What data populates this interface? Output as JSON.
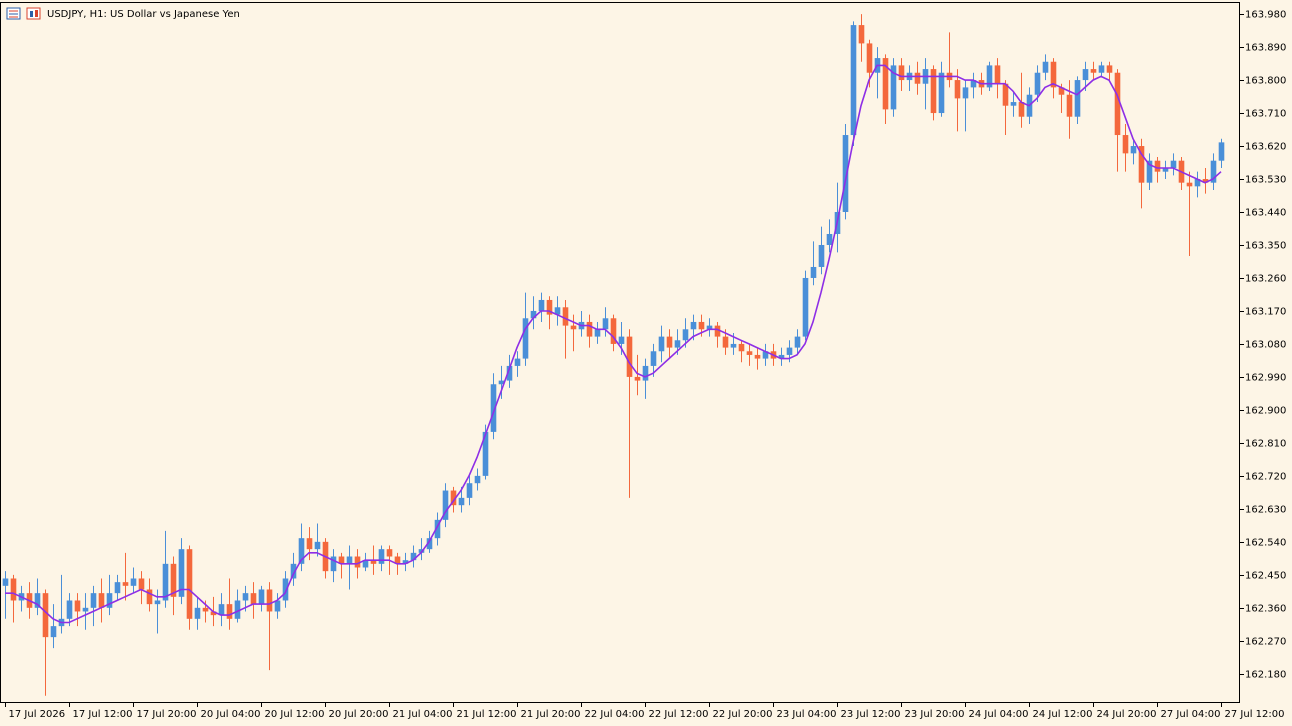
{
  "chart_data": {
    "type": "candlestick",
    "title": "USDJPY, H1:  US Dollar vs Japanese Yen",
    "up_color": "#4a8fd8",
    "down_color": "#f4683c",
    "ylim": [
      162.103,
      164.013
    ],
    "xlim": [
      -0.625,
      154.375
    ],
    "yticks": [
      {
        "value": 163.98,
        "label": "163.980"
      },
      {
        "value": 163.89,
        "label": "163.890"
      },
      {
        "value": 163.8,
        "label": "163.800"
      },
      {
        "value": 163.71,
        "label": "163.710"
      },
      {
        "value": 163.62,
        "label": "163.620"
      },
      {
        "value": 163.53,
        "label": "163.530"
      },
      {
        "value": 163.44,
        "label": "163.440"
      },
      {
        "value": 163.35,
        "label": "163.350"
      },
      {
        "value": 163.26,
        "label": "163.260"
      },
      {
        "value": 163.17,
        "label": "163.170"
      },
      {
        "value": 163.08,
        "label": "163.080"
      },
      {
        "value": 162.99,
        "label": "162.990"
      },
      {
        "value": 162.9,
        "label": "162.900"
      },
      {
        "value": 162.81,
        "label": "162.810"
      },
      {
        "value": 162.72,
        "label": "162.720"
      },
      {
        "value": 162.63,
        "label": "162.630"
      },
      {
        "value": 162.54,
        "label": "162.540"
      },
      {
        "value": 162.45,
        "label": "162.450"
      },
      {
        "value": 162.36,
        "label": "162.360"
      },
      {
        "value": 162.27,
        "label": "162.270"
      },
      {
        "value": 162.18,
        "label": "162.180"
      }
    ],
    "xticks": [
      {
        "value": 0,
        "label": "17 Jul 2026"
      },
      {
        "value": 8,
        "label": "17 Jul 12:00"
      },
      {
        "value": 16,
        "label": "17 Jul 20:00"
      },
      {
        "value": 24,
        "label": "20 Jul 04:00"
      },
      {
        "value": 32,
        "label": "20 Jul 12:00"
      },
      {
        "value": 40,
        "label": "20 Jul 20:00"
      },
      {
        "value": 48,
        "label": "21 Jul 04:00"
      },
      {
        "value": 56,
        "label": "21 Jul 12:00"
      },
      {
        "value": 64,
        "label": "21 Jul 20:00"
      },
      {
        "value": 72,
        "label": "22 Jul 04:00"
      },
      {
        "value": 80,
        "label": "22 Jul 12:00"
      },
      {
        "value": 88,
        "label": "22 Jul 20:00"
      },
      {
        "value": 96,
        "label": "23 Jul 04:00"
      },
      {
        "value": 104,
        "label": "23 Jul 12:00"
      },
      {
        "value": 112,
        "label": "23 Jul 20:00"
      },
      {
        "value": 120,
        "label": "24 Jul 04:00"
      },
      {
        "value": 128,
        "label": "24 Jul 12:00"
      },
      {
        "value": 136,
        "label": "24 Jul 20:00"
      },
      {
        "value": 144,
        "label": "27 Jul 04:00"
      },
      {
        "value": 152,
        "label": "27 Jul 12:00"
      }
    ],
    "candles": [
      [
        162.42,
        162.46,
        162.33,
        162.44
      ],
      [
        162.44,
        162.45,
        162.32,
        162.38
      ],
      [
        162.38,
        162.42,
        162.35,
        162.4
      ],
      [
        162.4,
        162.43,
        162.33,
        162.36
      ],
      [
        162.36,
        162.44,
        162.34,
        162.4
      ],
      [
        162.4,
        162.41,
        162.12,
        162.28
      ],
      [
        162.28,
        162.37,
        162.25,
        162.31
      ],
      [
        162.31,
        162.45,
        162.29,
        162.33
      ],
      [
        162.33,
        162.4,
        162.31,
        162.38
      ],
      [
        162.38,
        162.4,
        162.31,
        162.35
      ],
      [
        162.35,
        162.4,
        162.3,
        162.36
      ],
      [
        162.36,
        162.42,
        162.31,
        162.4
      ],
      [
        162.4,
        162.44,
        162.32,
        162.36
      ],
      [
        162.36,
        162.45,
        162.34,
        162.4
      ],
      [
        162.4,
        162.45,
        162.38,
        162.43
      ],
      [
        162.43,
        162.51,
        162.38,
        162.42
      ],
      [
        162.42,
        162.47,
        162.4,
        162.44
      ],
      [
        162.44,
        162.46,
        162.37,
        162.41
      ],
      [
        162.41,
        162.44,
        162.35,
        162.37
      ],
      [
        162.37,
        162.41,
        162.29,
        162.38
      ],
      [
        162.38,
        162.57,
        162.36,
        162.48
      ],
      [
        162.48,
        162.5,
        162.34,
        162.39
      ],
      [
        162.39,
        162.55,
        162.37,
        162.52
      ],
      [
        162.52,
        162.53,
        162.3,
        162.33
      ],
      [
        162.33,
        162.39,
        162.3,
        162.36
      ],
      [
        162.36,
        162.38,
        162.32,
        162.35
      ],
      [
        162.35,
        162.39,
        162.31,
        162.34
      ],
      [
        162.34,
        162.4,
        162.31,
        162.37
      ],
      [
        162.37,
        162.44,
        162.3,
        162.33
      ],
      [
        162.33,
        162.41,
        162.32,
        162.38
      ],
      [
        162.38,
        162.42,
        162.35,
        162.4
      ],
      [
        162.4,
        162.43,
        162.33,
        162.37
      ],
      [
        162.37,
        162.42,
        162.35,
        162.41
      ],
      [
        162.41,
        162.43,
        162.19,
        162.35
      ],
      [
        162.35,
        162.4,
        162.33,
        162.38
      ],
      [
        162.38,
        162.46,
        162.36,
        162.44
      ],
      [
        162.44,
        162.51,
        162.42,
        162.48
      ],
      [
        162.48,
        162.59,
        162.46,
        162.55
      ],
      [
        162.55,
        162.58,
        162.49,
        162.52
      ],
      [
        162.52,
        162.59,
        162.5,
        162.54
      ],
      [
        162.54,
        162.55,
        162.44,
        162.46
      ],
      [
        162.46,
        162.52,
        162.43,
        162.5
      ],
      [
        162.5,
        162.51,
        162.44,
        162.48
      ],
      [
        162.48,
        162.53,
        162.41,
        162.5
      ],
      [
        162.5,
        162.52,
        162.44,
        162.47
      ],
      [
        162.47,
        162.51,
        162.46,
        162.49
      ],
      [
        162.49,
        162.53,
        162.45,
        162.48
      ],
      [
        162.48,
        162.53,
        162.46,
        162.52
      ],
      [
        162.52,
        162.53,
        162.45,
        162.5
      ],
      [
        162.5,
        162.51,
        162.45,
        162.48
      ],
      [
        162.48,
        162.51,
        162.46,
        162.49
      ],
      [
        162.49,
        162.53,
        162.47,
        162.51
      ],
      [
        162.51,
        162.55,
        162.49,
        162.52
      ],
      [
        162.52,
        162.57,
        162.51,
        162.55
      ],
      [
        162.55,
        162.62,
        162.53,
        162.6
      ],
      [
        162.6,
        162.7,
        162.58,
        162.68
      ],
      [
        162.68,
        162.69,
        162.62,
        162.64
      ],
      [
        162.64,
        162.69,
        162.62,
        162.66
      ],
      [
        162.66,
        162.72,
        162.64,
        162.7
      ],
      [
        162.7,
        162.74,
        162.68,
        162.72
      ],
      [
        162.72,
        162.86,
        162.71,
        162.84
      ],
      [
        162.84,
        163.0,
        162.82,
        162.97
      ],
      [
        162.97,
        163.02,
        162.93,
        162.98
      ],
      [
        162.98,
        163.05,
        162.96,
        163.02
      ],
      [
        163.02,
        163.06,
        162.99,
        163.04
      ],
      [
        163.04,
        163.22,
        163.02,
        163.15
      ],
      [
        163.15,
        163.21,
        163.12,
        163.17
      ],
      [
        163.17,
        163.22,
        163.14,
        163.2
      ],
      [
        163.2,
        163.21,
        163.12,
        163.16
      ],
      [
        163.16,
        163.21,
        163.13,
        163.18
      ],
      [
        163.18,
        163.2,
        163.04,
        163.13
      ],
      [
        163.13,
        163.16,
        163.06,
        163.12
      ],
      [
        163.12,
        163.17,
        163.1,
        163.14
      ],
      [
        163.14,
        163.16,
        163.07,
        163.1
      ],
      [
        163.1,
        163.14,
        163.08,
        163.12
      ],
      [
        163.12,
        163.18,
        163.1,
        163.15
      ],
      [
        163.15,
        163.16,
        163.06,
        163.08
      ],
      [
        163.08,
        163.14,
        163.05,
        163.1
      ],
      [
        163.1,
        163.12,
        162.66,
        162.99
      ],
      [
        162.99,
        163.05,
        162.94,
        162.98
      ],
      [
        162.98,
        163.04,
        162.93,
        163.02
      ],
      [
        163.02,
        163.08,
        162.99,
        163.06
      ],
      [
        163.06,
        163.13,
        163.03,
        163.1
      ],
      [
        163.1,
        163.12,
        163.04,
        163.07
      ],
      [
        163.07,
        163.12,
        163.05,
        163.09
      ],
      [
        163.09,
        163.15,
        163.07,
        163.12
      ],
      [
        163.12,
        163.16,
        163.09,
        163.14
      ],
      [
        163.14,
        163.16,
        163.1,
        163.12
      ],
      [
        163.12,
        163.15,
        163.1,
        163.13
      ],
      [
        163.13,
        163.14,
        163.07,
        163.1
      ],
      [
        163.1,
        163.12,
        163.05,
        163.07
      ],
      [
        163.07,
        163.11,
        163.05,
        163.08
      ],
      [
        163.08,
        163.09,
        163.03,
        163.06
      ],
      [
        163.06,
        163.08,
        163.02,
        163.05
      ],
      [
        163.05,
        163.07,
        163.01,
        163.04
      ],
      [
        163.04,
        163.08,
        163.02,
        163.06
      ],
      [
        163.06,
        163.08,
        163.02,
        163.04
      ],
      [
        163.04,
        163.07,
        163.02,
        163.05
      ],
      [
        163.05,
        163.09,
        163.03,
        163.07
      ],
      [
        163.07,
        163.12,
        163.05,
        163.1
      ],
      [
        163.1,
        163.28,
        163.09,
        163.26
      ],
      [
        163.26,
        163.36,
        163.24,
        163.29
      ],
      [
        163.29,
        163.4,
        163.27,
        163.35
      ],
      [
        163.35,
        163.42,
        163.33,
        163.38
      ],
      [
        163.38,
        163.52,
        163.33,
        163.44
      ],
      [
        163.44,
        163.68,
        163.42,
        163.65
      ],
      [
        163.65,
        163.96,
        163.62,
        163.95
      ],
      [
        163.95,
        163.98,
        163.85,
        163.9
      ],
      [
        163.9,
        163.91,
        163.78,
        163.82
      ],
      [
        163.82,
        163.89,
        163.75,
        163.86
      ],
      [
        163.86,
        163.87,
        163.68,
        163.72
      ],
      [
        163.72,
        163.86,
        163.7,
        163.84
      ],
      [
        163.84,
        163.86,
        163.77,
        163.8
      ],
      [
        163.8,
        163.84,
        163.77,
        163.82
      ],
      [
        163.82,
        163.85,
        163.76,
        163.79
      ],
      [
        163.79,
        163.86,
        163.72,
        163.83
      ],
      [
        163.83,
        163.84,
        163.69,
        163.71
      ],
      [
        163.71,
        163.85,
        163.7,
        163.82
      ],
      [
        163.82,
        163.93,
        163.78,
        163.8
      ],
      [
        163.8,
        163.83,
        163.66,
        163.75
      ],
      [
        163.75,
        163.8,
        163.66,
        163.78
      ],
      [
        163.78,
        163.82,
        163.75,
        163.8
      ],
      [
        163.8,
        163.82,
        163.76,
        163.78
      ],
      [
        163.78,
        163.85,
        163.77,
        163.84
      ],
      [
        163.84,
        163.86,
        163.75,
        163.79
      ],
      [
        163.79,
        163.8,
        163.65,
        163.73
      ],
      [
        163.73,
        163.77,
        163.7,
        163.74
      ],
      [
        163.74,
        163.82,
        163.67,
        163.7
      ],
      [
        163.7,
        163.78,
        163.68,
        163.76
      ],
      [
        163.76,
        163.84,
        163.74,
        163.82
      ],
      [
        163.82,
        163.87,
        163.8,
        163.85
      ],
      [
        163.85,
        163.86,
        163.75,
        163.78
      ],
      [
        163.78,
        163.79,
        163.71,
        163.76
      ],
      [
        163.76,
        163.8,
        163.64,
        163.7
      ],
      [
        163.7,
        163.81,
        163.68,
        163.8
      ],
      [
        163.8,
        163.85,
        163.77,
        163.83
      ],
      [
        163.83,
        163.85,
        163.8,
        163.82
      ],
      [
        163.82,
        163.85,
        163.81,
        163.84
      ],
      [
        163.84,
        163.85,
        163.8,
        163.82
      ],
      [
        163.82,
        163.83,
        163.55,
        163.65
      ],
      [
        163.65,
        163.68,
        163.55,
        163.6
      ],
      [
        163.6,
        163.64,
        163.57,
        163.62
      ],
      [
        163.62,
        163.64,
        163.45,
        163.52
      ],
      [
        163.52,
        163.6,
        163.5,
        163.58
      ],
      [
        163.58,
        163.59,
        163.52,
        163.55
      ],
      [
        163.55,
        163.58,
        163.53,
        163.56
      ],
      [
        163.56,
        163.6,
        163.54,
        163.58
      ],
      [
        163.58,
        163.59,
        163.5,
        163.52
      ],
      [
        163.52,
        163.55,
        163.32,
        163.51
      ],
      [
        163.51,
        163.55,
        163.48,
        163.53
      ],
      [
        163.53,
        163.56,
        163.49,
        163.52
      ],
      [
        163.52,
        163.6,
        163.5,
        163.58
      ],
      [
        163.58,
        163.64,
        163.56,
        163.63
      ]
    ],
    "ma": {
      "color": "#8e2ee6",
      "values": [
        162.4,
        162.4,
        162.39,
        162.38,
        162.37,
        162.35,
        162.33,
        162.32,
        162.32,
        162.33,
        162.34,
        162.35,
        162.36,
        162.37,
        162.38,
        162.39,
        162.4,
        162.41,
        162.4,
        162.39,
        162.39,
        162.4,
        162.41,
        162.41,
        162.39,
        162.37,
        162.35,
        162.34,
        162.34,
        162.35,
        162.36,
        162.37,
        162.37,
        162.37,
        162.38,
        162.4,
        162.45,
        162.49,
        162.51,
        162.51,
        162.5,
        162.49,
        162.48,
        162.48,
        162.48,
        162.49,
        162.49,
        162.49,
        162.49,
        162.48,
        162.48,
        162.49,
        162.51,
        162.54,
        162.58,
        162.62,
        162.65,
        162.68,
        162.72,
        162.77,
        162.83,
        162.89,
        162.95,
        163.01,
        163.07,
        163.12,
        163.15,
        163.17,
        163.17,
        163.16,
        163.15,
        163.14,
        163.13,
        163.13,
        163.12,
        163.12,
        163.1,
        163.07,
        163.03,
        163.0,
        162.99,
        163.0,
        163.02,
        163.04,
        163.06,
        163.08,
        163.1,
        163.11,
        163.12,
        163.12,
        163.11,
        163.1,
        163.09,
        163.08,
        163.07,
        163.06,
        163.05,
        163.04,
        163.04,
        163.05,
        163.08,
        163.14,
        163.22,
        163.31,
        163.41,
        163.52,
        163.63,
        163.73,
        163.8,
        163.84,
        163.84,
        163.82,
        163.81,
        163.81,
        163.81,
        163.81,
        163.81,
        163.81,
        163.81,
        163.81,
        163.8,
        163.8,
        163.79,
        163.79,
        163.79,
        163.79,
        163.77,
        163.74,
        163.73,
        163.75,
        163.78,
        163.79,
        163.78,
        163.77,
        163.76,
        163.78,
        163.8,
        163.81,
        163.8,
        163.76,
        163.7,
        163.64,
        163.6,
        163.57,
        163.56,
        163.56,
        163.56,
        163.55,
        163.54,
        163.53,
        163.52,
        163.53,
        163.55
      ]
    }
  }
}
